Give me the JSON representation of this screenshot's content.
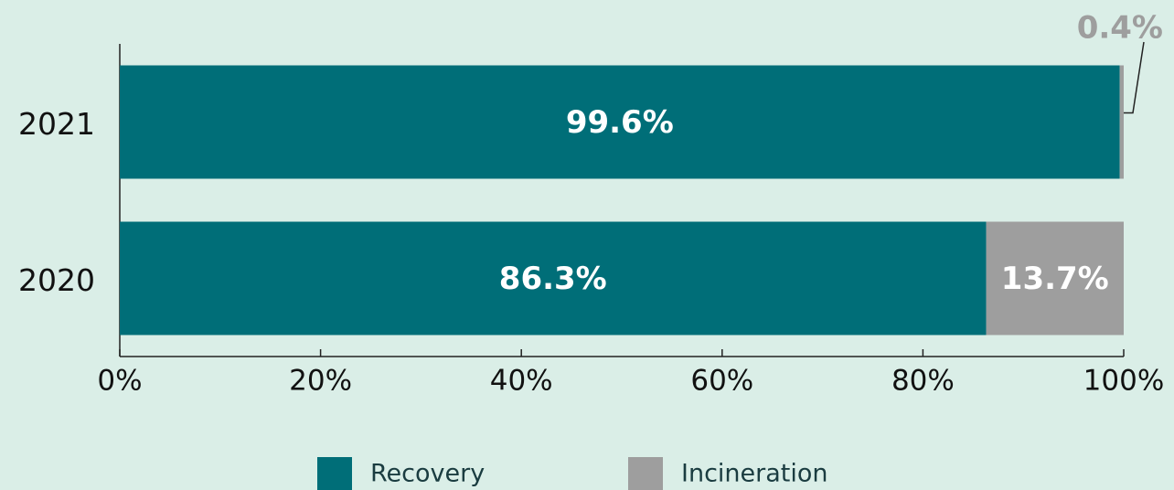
{
  "chart_data": {
    "type": "stacked-barh",
    "categories": [
      "2021",
      "2020"
    ],
    "series": [
      {
        "name": "Recovery",
        "color": "#006e78",
        "values": [
          99.6,
          86.3
        ],
        "value_labels": [
          "99.6%",
          "86.3%"
        ]
      },
      {
        "name": "Incineration",
        "color": "#9e9e9e",
        "values": [
          0.4,
          13.7
        ],
        "value_labels": [
          "0.4%",
          "13.7%"
        ]
      }
    ],
    "xlim": [
      0,
      100
    ],
    "xticks": [
      {
        "value": 0,
        "label": "0%"
      },
      {
        "value": 20,
        "label": "20%"
      },
      {
        "value": 40,
        "label": "40%"
      },
      {
        "value": 60,
        "label": "60%"
      },
      {
        "value": 80,
        "label": "80%"
      },
      {
        "value": 100,
        "label": "100%"
      }
    ],
    "legend": "bottom"
  }
}
